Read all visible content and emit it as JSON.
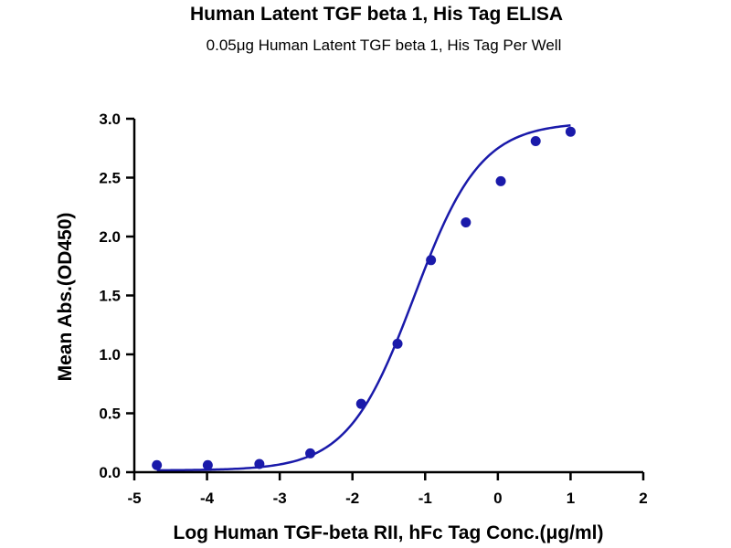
{
  "chart_data": {
    "type": "scatter",
    "title": "Human Latent TGF beta 1, His Tag ELISA",
    "subtitle": "0.05μg Human Latent TGF beta 1, His Tag Per Well",
    "xlabel": "Log Human TGF-beta RII, hFc Tag Conc.(μg/ml)",
    "ylabel": "Mean Abs.(OD450)",
    "xlim": [
      -5,
      2
    ],
    "ylim": [
      0,
      3.0
    ],
    "x_ticks": [
      -5,
      -4,
      -3,
      -2,
      -1,
      0,
      1,
      2
    ],
    "y_ticks": [
      0.0,
      0.5,
      1.0,
      1.5,
      2.0,
      2.5,
      3.0
    ],
    "x_tick_labels": [
      "-5",
      "-4",
      "-3",
      "-2",
      "-1",
      "0",
      "1",
      "2"
    ],
    "y_tick_labels": [
      "0.0",
      "0.5",
      "1.0",
      "1.5",
      "2.0",
      "2.5",
      "3.0"
    ],
    "grid": false,
    "series": [
      {
        "x": [
          -4.69,
          -3.99,
          -3.28,
          -2.58,
          -1.88,
          -1.38,
          -0.92,
          -0.44,
          0.04,
          0.52,
          1.0
        ],
        "y": [
          0.06,
          0.06,
          0.07,
          0.16,
          0.58,
          1.09,
          1.8,
          2.12,
          2.47,
          2.81,
          2.89
        ],
        "color": "#1a1aaa",
        "fit": {
          "model": "4PL",
          "bottom": 0.015,
          "top": 2.97,
          "logEC50": -1.15,
          "hill": 0.95,
          "x_range": [
            -4.69,
            1.0
          ]
        }
      }
    ]
  }
}
